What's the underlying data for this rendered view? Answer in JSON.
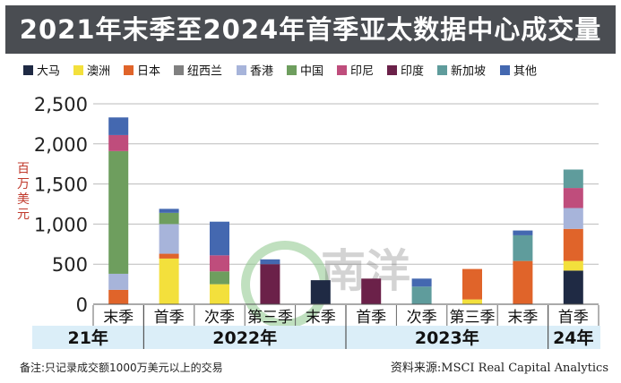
{
  "title": "2021年末季至2024年首季亚太数据中心成交量",
  "footnote": "备注:只记录成交额1000万美元以上的交易",
  "source": "资料来源:MSCI Real Capital Analytics",
  "watermark_text": "南洋",
  "colors": {
    "title_bg": "#4a4d52",
    "year_bg": "#dbeef8",
    "grid": "#bbbbbb"
  },
  "chart_data": {
    "type": "bar",
    "stacked": true,
    "ylabel": "百万美元",
    "ylim": [
      0,
      2500
    ],
    "yticks": [
      0,
      500,
      1000,
      1500,
      2000,
      2500
    ],
    "ytick_labels": [
      "0",
      "500",
      "1,000",
      "1,500",
      "2,000",
      "2,500"
    ],
    "grid": true,
    "legend_position": "top",
    "categories": [
      "末季",
      "首季",
      "次季",
      "第三季",
      "末季",
      "首季",
      "次季",
      "第三季",
      "末季",
      "首季"
    ],
    "year_groups": [
      {
        "label": "21年",
        "start": 0,
        "end": 0
      },
      {
        "label": "2022年",
        "start": 1,
        "end": 4
      },
      {
        "label": "2023年",
        "start": 5,
        "end": 8
      },
      {
        "label": "24年",
        "start": 9,
        "end": 9
      }
    ],
    "series": [
      {
        "name": "大马",
        "color": "#1f2a44",
        "values": [
          0,
          0,
          0,
          0,
          300,
          0,
          0,
          0,
          0,
          420
        ]
      },
      {
        "name": "澳洲",
        "color": "#f3e03c",
        "values": [
          0,
          570,
          250,
          0,
          0,
          0,
          0,
          60,
          0,
          120
        ]
      },
      {
        "name": "日本",
        "color": "#e0642a",
        "values": [
          180,
          60,
          0,
          0,
          0,
          0,
          0,
          380,
          540,
          400
        ]
      },
      {
        "name": "纽西兰",
        "color": "#808080",
        "values": [
          0,
          0,
          0,
          0,
          0,
          0,
          0,
          0,
          0,
          0
        ]
      },
      {
        "name": "香港",
        "color": "#a7b4da",
        "values": [
          200,
          370,
          0,
          0,
          0,
          0,
          0,
          0,
          0,
          260
        ]
      },
      {
        "name": "中国",
        "color": "#6e9e5e",
        "values": [
          1530,
          140,
          160,
          0,
          0,
          0,
          0,
          0,
          0,
          0
        ]
      },
      {
        "name": "印尼",
        "color": "#bf4d7c",
        "values": [
          200,
          0,
          200,
          0,
          0,
          0,
          0,
          0,
          0,
          250
        ]
      },
      {
        "name": "印度",
        "color": "#6b2149",
        "values": [
          0,
          0,
          0,
          500,
          0,
          320,
          0,
          0,
          0,
          0
        ]
      },
      {
        "name": "新加坡",
        "color": "#5f9c9c",
        "values": [
          0,
          0,
          0,
          0,
          0,
          0,
          220,
          0,
          320,
          230
        ]
      },
      {
        "name": "其他",
        "color": "#4468b0",
        "values": [
          220,
          50,
          420,
          60,
          0,
          0,
          100,
          0,
          60,
          0
        ]
      }
    ]
  }
}
